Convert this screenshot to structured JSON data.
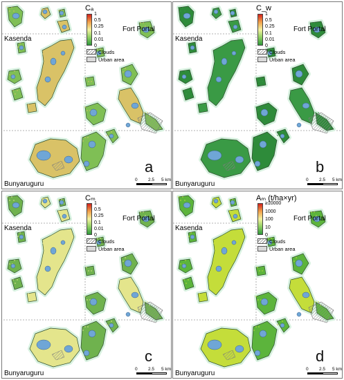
{
  "panels": [
    {
      "letter": "a",
      "legend_title": "Cₐ",
      "ticks": [
        "1",
        "0.5",
        "0.25",
        "0.1",
        "0.01",
        "0"
      ],
      "ramp": [
        "#d4221c",
        "#f0a14a",
        "#f4f2a0",
        "#8fcf62",
        "#2f9a3c"
      ],
      "fill": "#7fbf55",
      "accent": "#d9c267"
    },
    {
      "letter": "b",
      "legend_title": "C_w",
      "ticks": [
        "1",
        "0.5",
        "0.25",
        "0.1",
        "0.01",
        "0"
      ],
      "ramp": [
        "#d4221c",
        "#f0a14a",
        "#f4f2a0",
        "#8fcf62",
        "#2f9a3c"
      ],
      "fill": "#2e8b3a",
      "accent": "#3a9a45"
    },
    {
      "letter": "c",
      "legend_title": "Cₘ",
      "ticks": [
        "1",
        "0.5",
        "0.25",
        "0.1",
        "0.01",
        "0"
      ],
      "ramp": [
        "#d4221c",
        "#f0a14a",
        "#f4f2a0",
        "#8fcf62",
        "#2f9a3c"
      ],
      "fill": "#6fb24e",
      "accent": "#e4e58c"
    },
    {
      "letter": "d",
      "legend_title": "Aₘ (t/ha×yr)",
      "ticks": [
        "≥10000",
        "1000",
        "100",
        "10",
        "0"
      ],
      "ramp": [
        "#d4221c",
        "#f0a14a",
        "#f4f2a0",
        "#8fcf62",
        "#2f9a3c"
      ],
      "fill": "#5cb43c",
      "accent": "#c4dd3a"
    }
  ],
  "labels": {
    "kasenda": "Kasenda",
    "fort_portal": "Fort Portal",
    "bunyaruguru": "Bunyaruguru",
    "clouds": "Clouds",
    "urban": "Urban area"
  },
  "scalebar": {
    "zero": "0",
    "mid": "2.5",
    "end": "5 km"
  },
  "colors": {
    "lake": "#6fa6d6",
    "halo": "#d8f2e0",
    "outline": "#2a4a2a",
    "clouds_hatch": "#888888",
    "urban": "#d9d9d9"
  }
}
